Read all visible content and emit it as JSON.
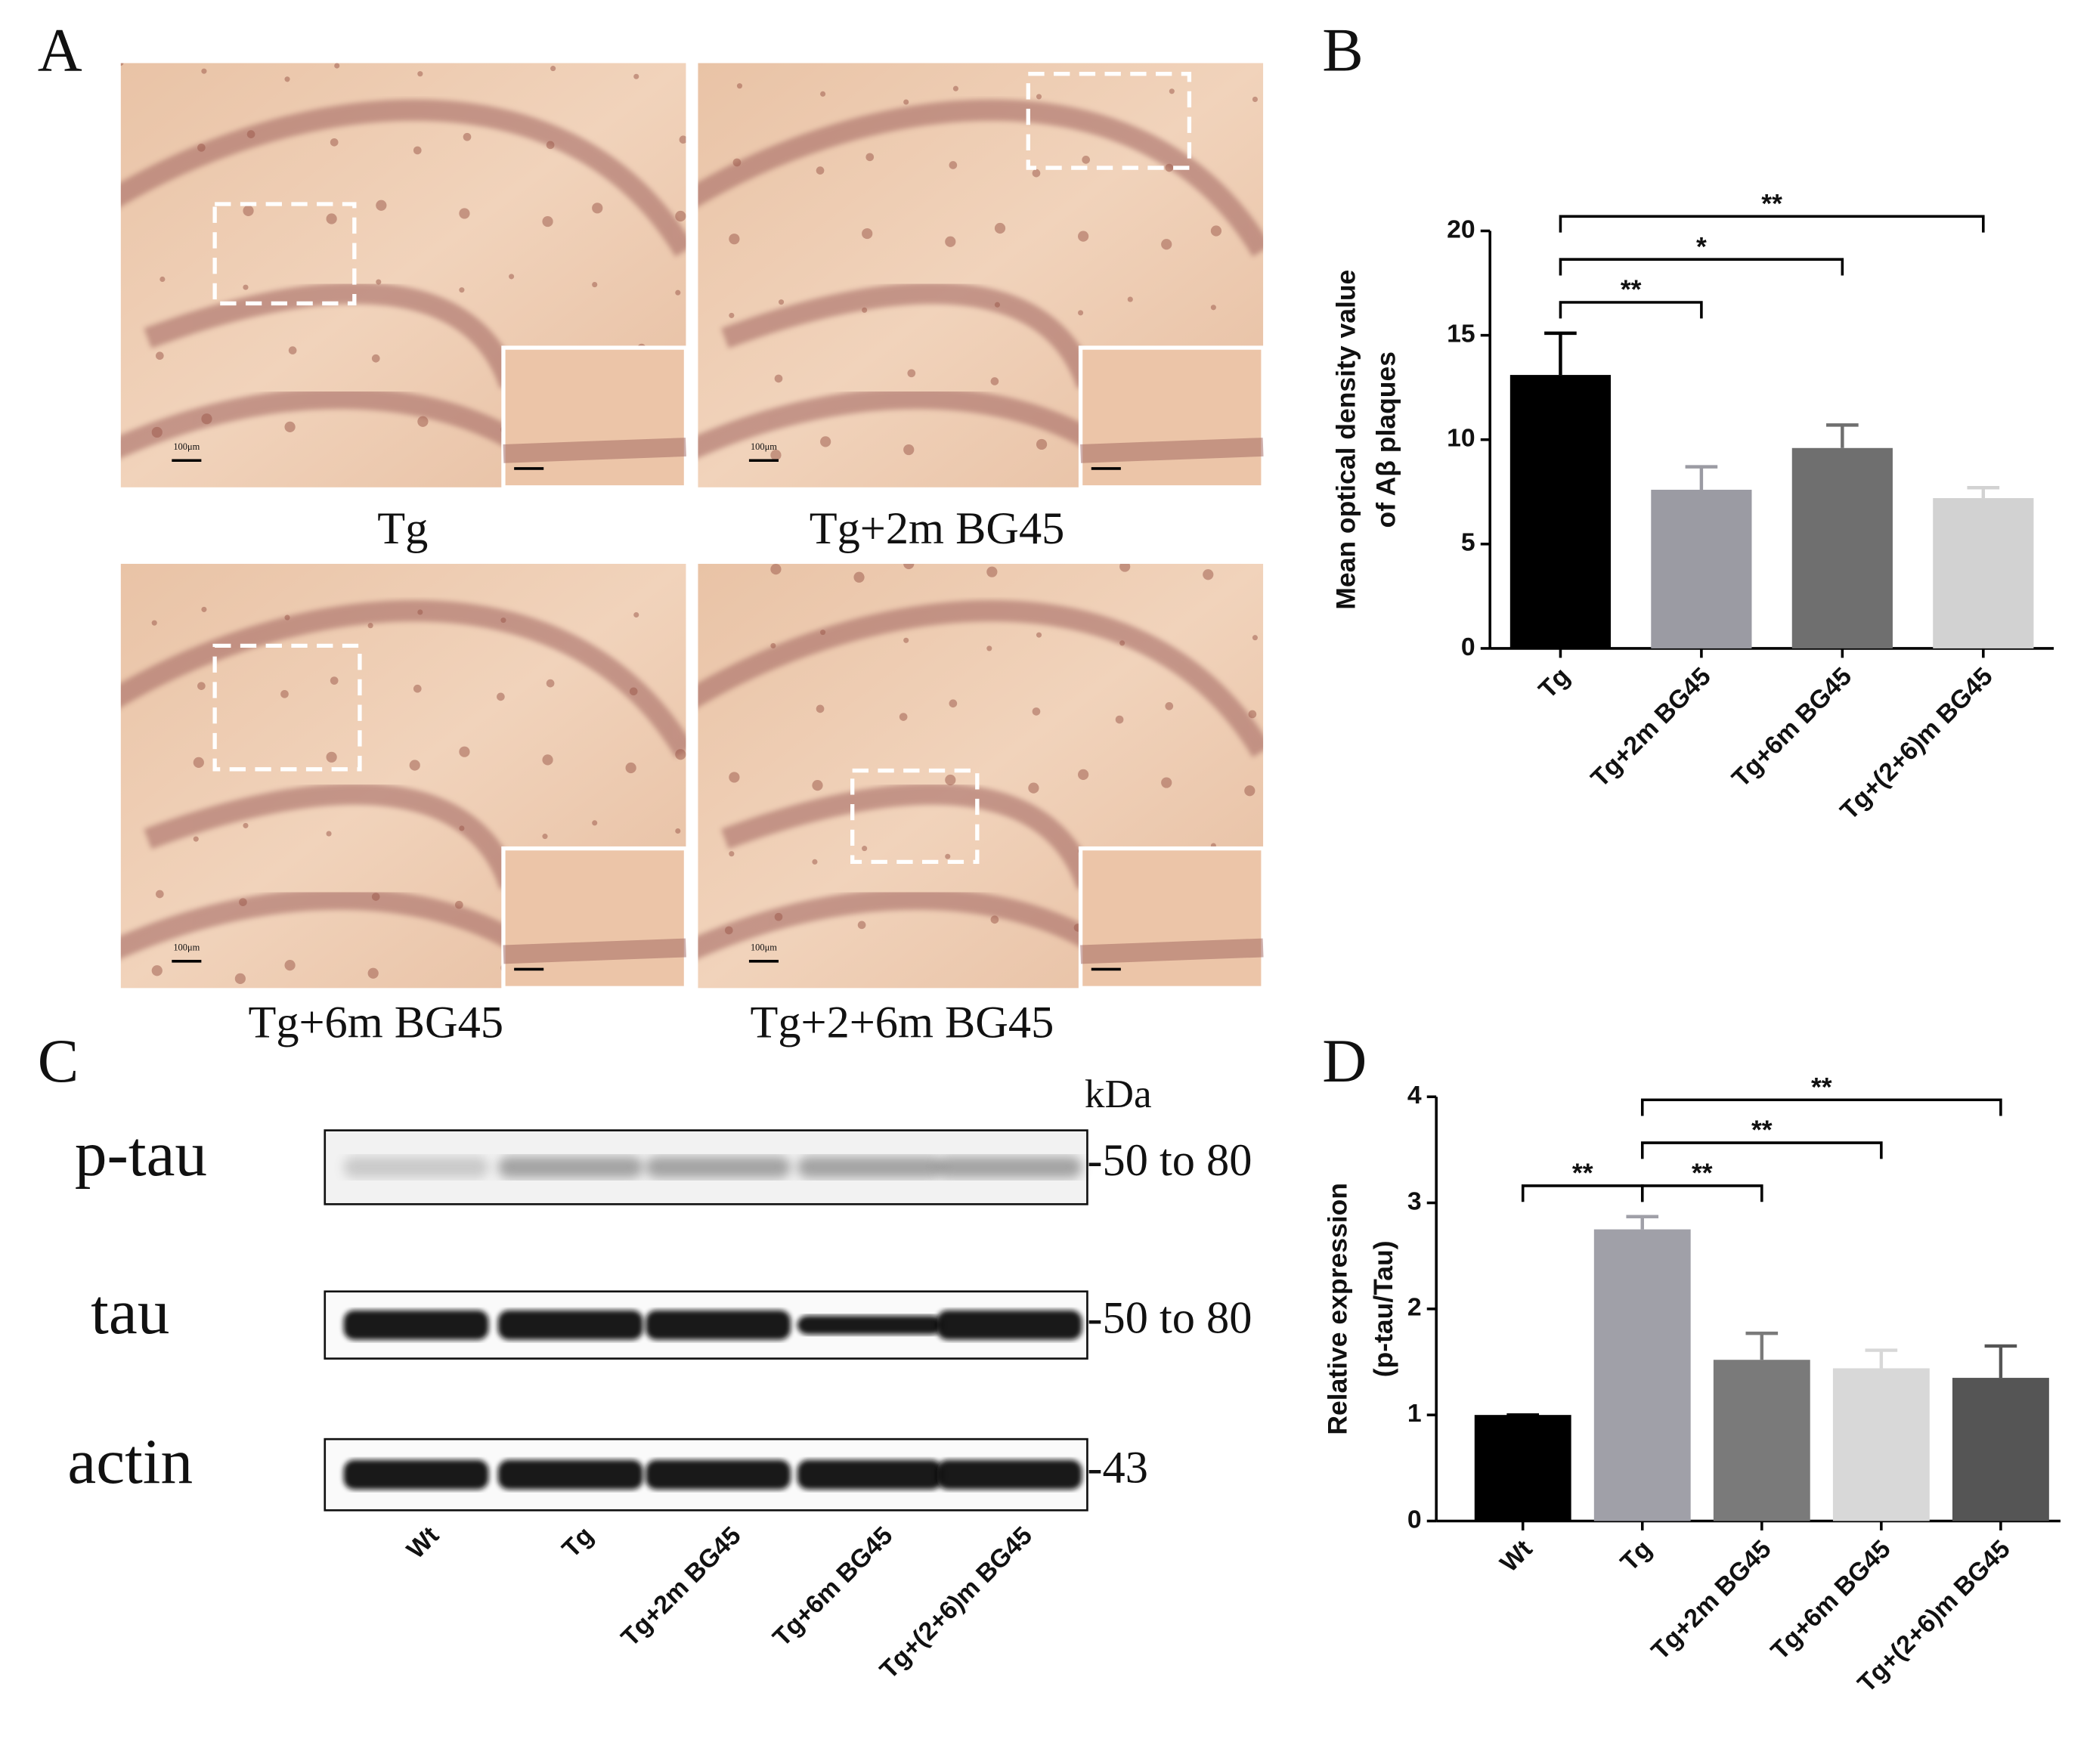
{
  "panel_labels": [
    "A",
    "B",
    "C",
    "D"
  ],
  "micrographs": {
    "captions": [
      "Tg",
      "Tg+2m BG45",
      "Tg+6m BG45",
      "Tg+2+6m BG45"
    ],
    "scale_label": "100μm"
  },
  "western_blot": {
    "size_unit": "kDa",
    "rows": [
      {
        "name": "p-tau",
        "size": "-50 to 80"
      },
      {
        "name": "tau",
        "size": "-50 to 80"
      },
      {
        "name": "actin",
        "size": "-43"
      }
    ],
    "lanes": [
      "Wt",
      "Tg",
      "Tg+2m BG45",
      "Tg+6m BG45",
      "Tg+(2+6)m BG45"
    ]
  },
  "chart_data": [
    {
      "type": "bar",
      "ylabel": [
        "Mean optical density value",
        "of Aβ plaques"
      ],
      "categories": [
        "Tg",
        "Tg+2m BG45",
        "Tg+6m BG45",
        "Tg+(2+6)m BG45"
      ],
      "values": [
        13.1,
        7.6,
        9.6,
        7.2
      ],
      "errors": [
        2.0,
        1.1,
        1.1,
        0.5
      ],
      "colors": [
        "#000000",
        "#9b9ba3",
        "#6f6f6f",
        "#d2d2d2"
      ],
      "ylim": [
        0,
        20
      ],
      "yticks": [
        0,
        5,
        10,
        15,
        20
      ],
      "comparisons": [
        {
          "groups": [
            "Tg",
            "Tg+2m BG45"
          ],
          "label": "**"
        },
        {
          "groups": [
            "Tg",
            "Tg+6m BG45"
          ],
          "label": "*"
        },
        {
          "groups": [
            "Tg",
            "Tg+(2+6)m BG45"
          ],
          "label": "**"
        }
      ]
    },
    {
      "type": "bar",
      "ylabel": [
        "Relative expression",
        "(p-tau/Tau)"
      ],
      "categories": [
        "Wt",
        "Tg",
        "Tg+2m BG45",
        "Tg+6m BG45",
        "Tg+(2+6)m BG45"
      ],
      "values": [
        1.0,
        2.75,
        1.52,
        1.44,
        1.35
      ],
      "errors": [
        0,
        0.12,
        0.25,
        0.17,
        0.3
      ],
      "colors": [
        "#000000",
        "#a0a0a8",
        "#7a7a7a",
        "#d8d8d8",
        "#555555"
      ],
      "ylim": [
        0,
        4
      ],
      "yticks": [
        0,
        1,
        2,
        3,
        4
      ],
      "comparisons": [
        {
          "groups": [
            "Wt",
            "Tg"
          ],
          "label": "**"
        },
        {
          "groups": [
            "Tg",
            "Tg+2m BG45"
          ],
          "label": "**"
        },
        {
          "groups": [
            "Tg",
            "Tg+6m BG45"
          ],
          "label": "**"
        },
        {
          "groups": [
            "Tg",
            "Tg+(2+6)m BG45"
          ],
          "label": "**"
        }
      ]
    }
  ]
}
